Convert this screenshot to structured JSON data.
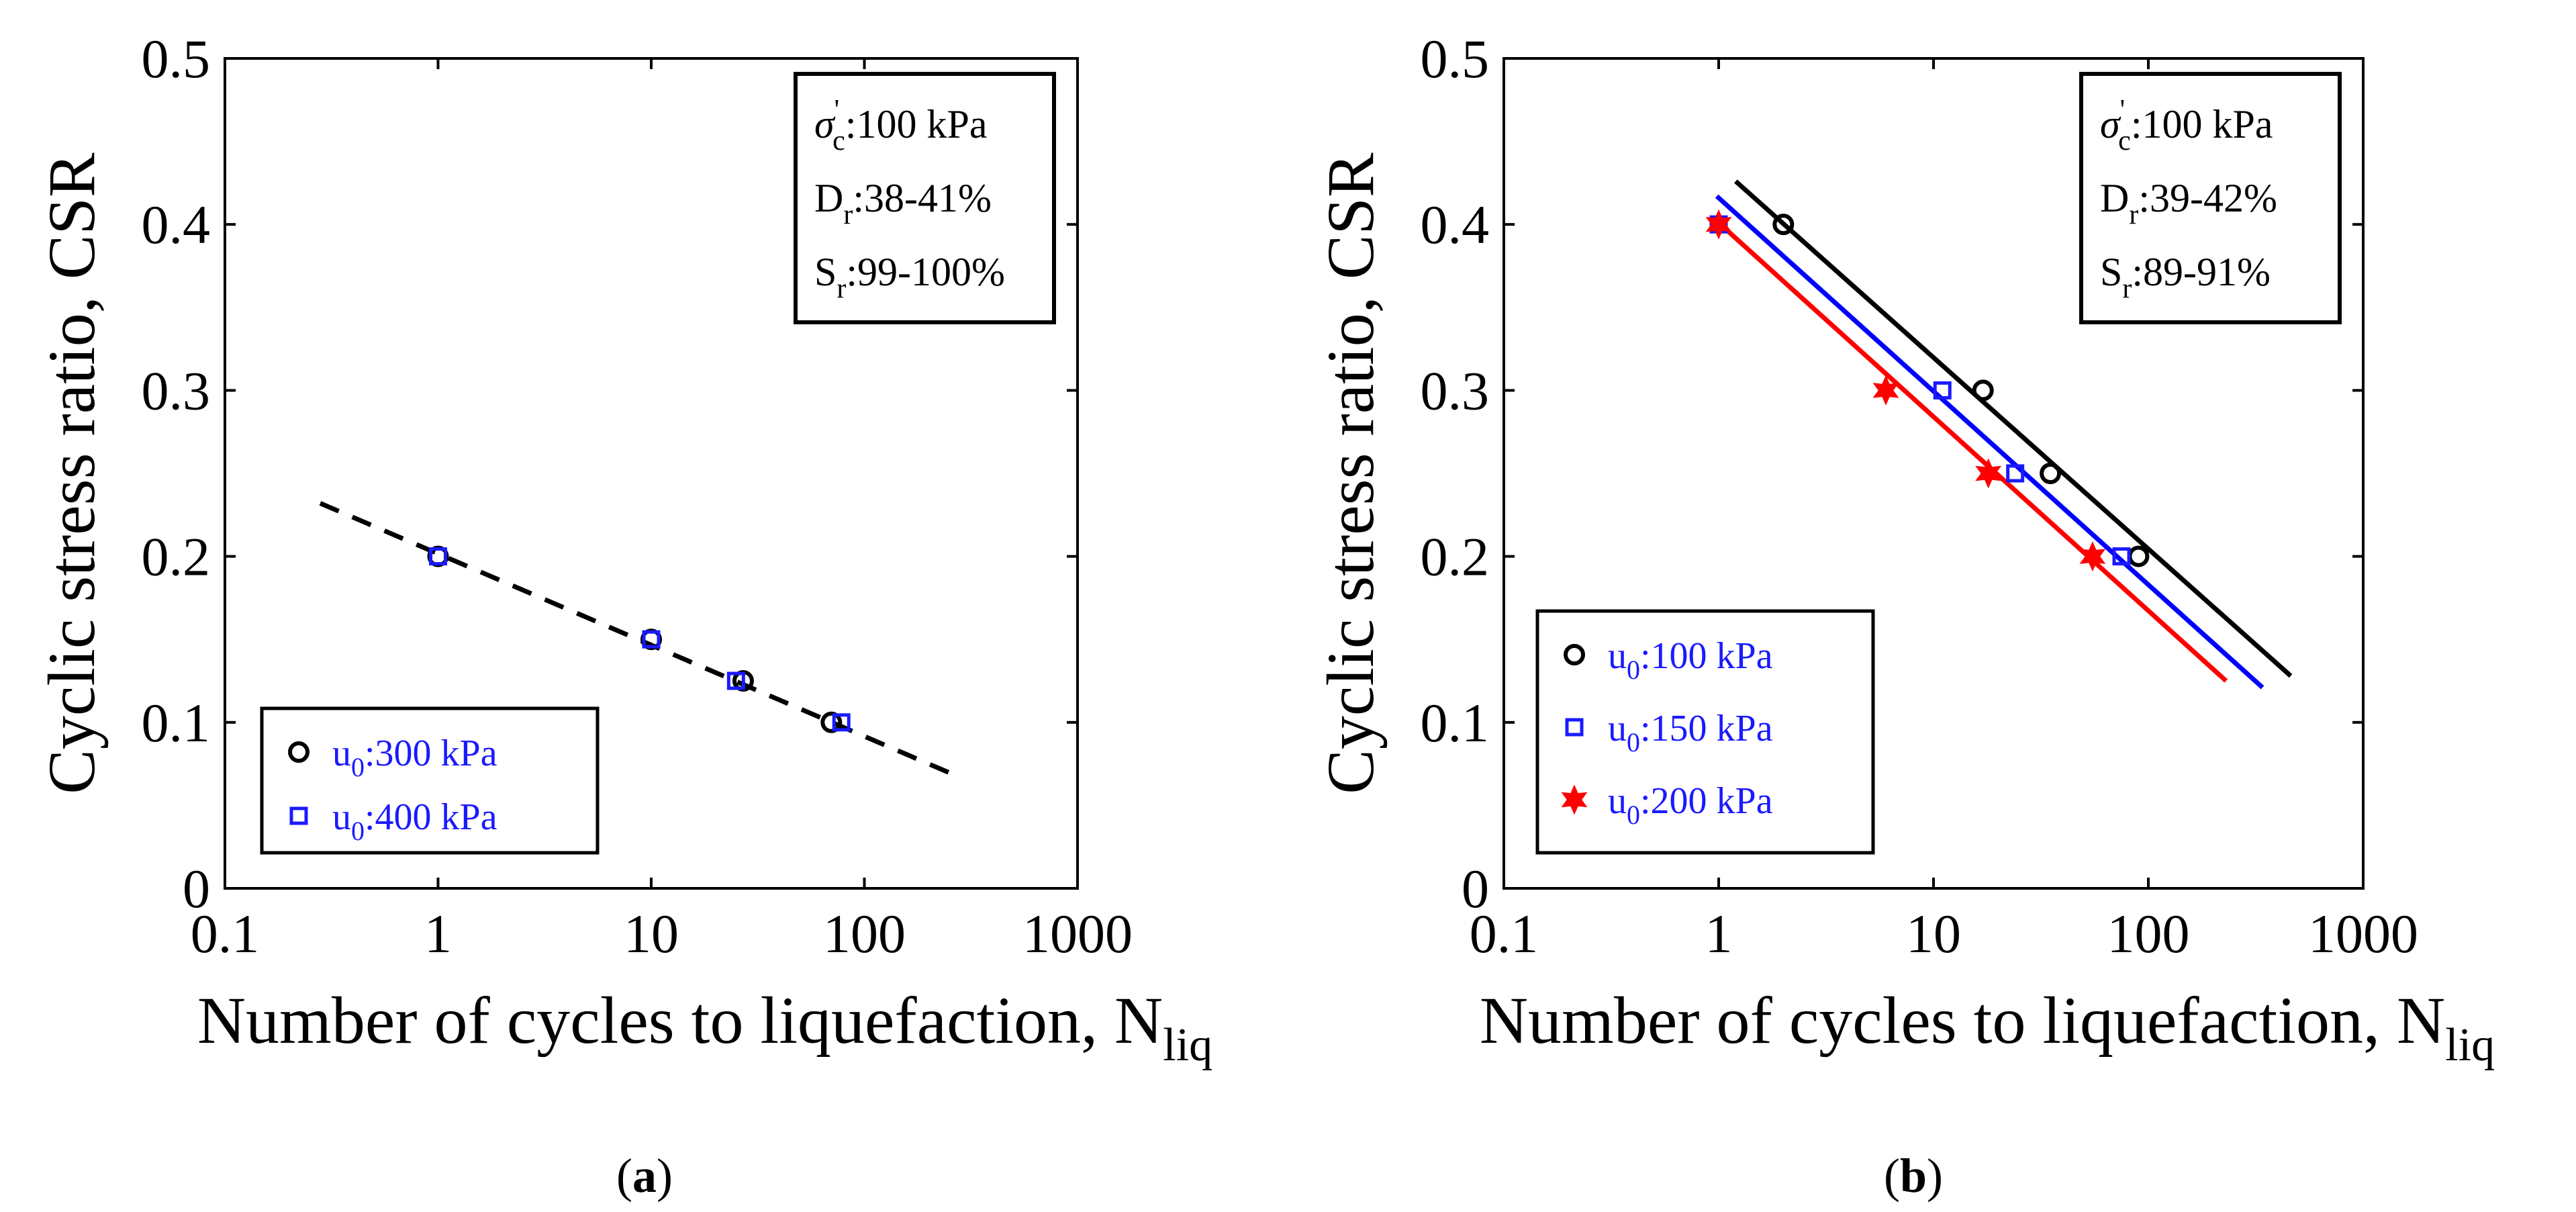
{
  "chart_data": [
    {
      "type": "scatter",
      "panel_label": "a",
      "xlabel": "Number of cycles to liquefaction, N",
      "xlabel_sub": "liq",
      "ylabel": "Cyclic stress ratio, CSR",
      "xscale": "log",
      "xlim": [
        0.1,
        1000
      ],
      "ylim": [
        0,
        0.5
      ],
      "xticks": [
        0.1,
        1,
        10,
        100,
        1000
      ],
      "xtick_labels": [
        "0.1",
        "1",
        "10",
        "100",
        "1000"
      ],
      "yticks": [
        0,
        0.1,
        0.2,
        0.3,
        0.4,
        0.5
      ],
      "ytick_labels": [
        "0",
        "0.1",
        "0.2",
        "0.3",
        "0.4",
        "0.5"
      ],
      "info_box": [
        {
          "symbol": "σ",
          "sup": "'",
          "sub": "c",
          "text": ":100 kPa"
        },
        {
          "symbol": "D",
          "sup": "",
          "sub": "r",
          "text": ":38-41%"
        },
        {
          "symbol": "S",
          "sup": "",
          "sub": "r",
          "text": ":99-100%"
        }
      ],
      "legend_position": "bottom-left",
      "series": [
        {
          "name": "u0:300 kPa",
          "label_base": "u",
          "label_sub": "0",
          "label_text": ":300 kPa",
          "marker": "circle",
          "color": "#000000",
          "label_color": "#1a1aff",
          "x": [
            1,
            10,
            27,
            70
          ],
          "y": [
            0.2,
            0.15,
            0.125,
            0.1
          ]
        },
        {
          "name": "u0:400 kPa",
          "label_base": "u",
          "label_sub": "0",
          "label_text": ":400 kPa",
          "marker": "square",
          "color": "#1a1aff",
          "label_color": "#1a1aff",
          "x": [
            1,
            10,
            25,
            78
          ],
          "y": [
            0.2,
            0.15,
            0.125,
            0.1
          ]
        }
      ],
      "fit_lines": [
        {
          "style": "dashed",
          "color": "#000000",
          "x": [
            0.28,
            280
          ],
          "y": [
            0.232,
            0.067
          ]
        }
      ]
    },
    {
      "type": "scatter",
      "panel_label": "b",
      "xlabel": "Number of cycles to liquefaction, N",
      "xlabel_sub": "liq",
      "ylabel": "Cyclic stress ratio, CSR",
      "xscale": "log",
      "xlim": [
        0.1,
        1000
      ],
      "ylim": [
        0,
        0.5
      ],
      "xticks": [
        0.1,
        1,
        10,
        100,
        1000
      ],
      "xtick_labels": [
        "0.1",
        "1",
        "10",
        "100",
        "1000"
      ],
      "yticks": [
        0,
        0.1,
        0.2,
        0.3,
        0.4,
        0.5
      ],
      "ytick_labels": [
        "0",
        "0.1",
        "0.2",
        "0.3",
        "0.4",
        "0.5"
      ],
      "info_box": [
        {
          "symbol": "σ",
          "sup": "'",
          "sub": "c",
          "text": ":100 kPa"
        },
        {
          "symbol": "D",
          "sup": "",
          "sub": "r",
          "text": ":39-42%"
        },
        {
          "symbol": "S",
          "sup": "",
          "sub": "r",
          "text": ":89-91%"
        }
      ],
      "legend_position": "bottom-left",
      "series": [
        {
          "name": "u0:100 kPa",
          "label_base": "u",
          "label_sub": "0",
          "label_text": ":100 kPa",
          "marker": "circle",
          "color": "#000000",
          "label_color": "#1a1aff",
          "x": [
            2,
            17,
            35,
            90
          ],
          "y": [
            0.4,
            0.3,
            0.25,
            0.2
          ]
        },
        {
          "name": "u0:150 kPa",
          "label_base": "u",
          "label_sub": "0",
          "label_text": ":150 kPa",
          "marker": "square",
          "color": "#1a1aff",
          "label_color": "#1a1aff",
          "x": [
            1,
            11,
            24,
            75
          ],
          "y": [
            0.4,
            0.3,
            0.25,
            0.2
          ]
        },
        {
          "name": "u0:200 kPa",
          "label_base": "u",
          "label_sub": "0",
          "label_text": ":200 kPa",
          "marker": "star",
          "color": "#ff0000",
          "label_color": "#1a1aff",
          "x": [
            1,
            6,
            18,
            55
          ],
          "y": [
            0.4,
            0.3,
            0.25,
            0.2
          ]
        }
      ],
      "fit_lines": [
        {
          "style": "solid",
          "color": "#000000",
          "x": [
            1.2,
            460
          ],
          "y": [
            0.426,
            0.128
          ]
        },
        {
          "style": "solid",
          "color": "#0000ff",
          "x": [
            0.98,
            340
          ],
          "y": [
            0.417,
            0.121
          ]
        },
        {
          "style": "solid",
          "color": "#ff0000",
          "x": [
            0.98,
            230
          ],
          "y": [
            0.402,
            0.125
          ]
        }
      ]
    }
  ]
}
